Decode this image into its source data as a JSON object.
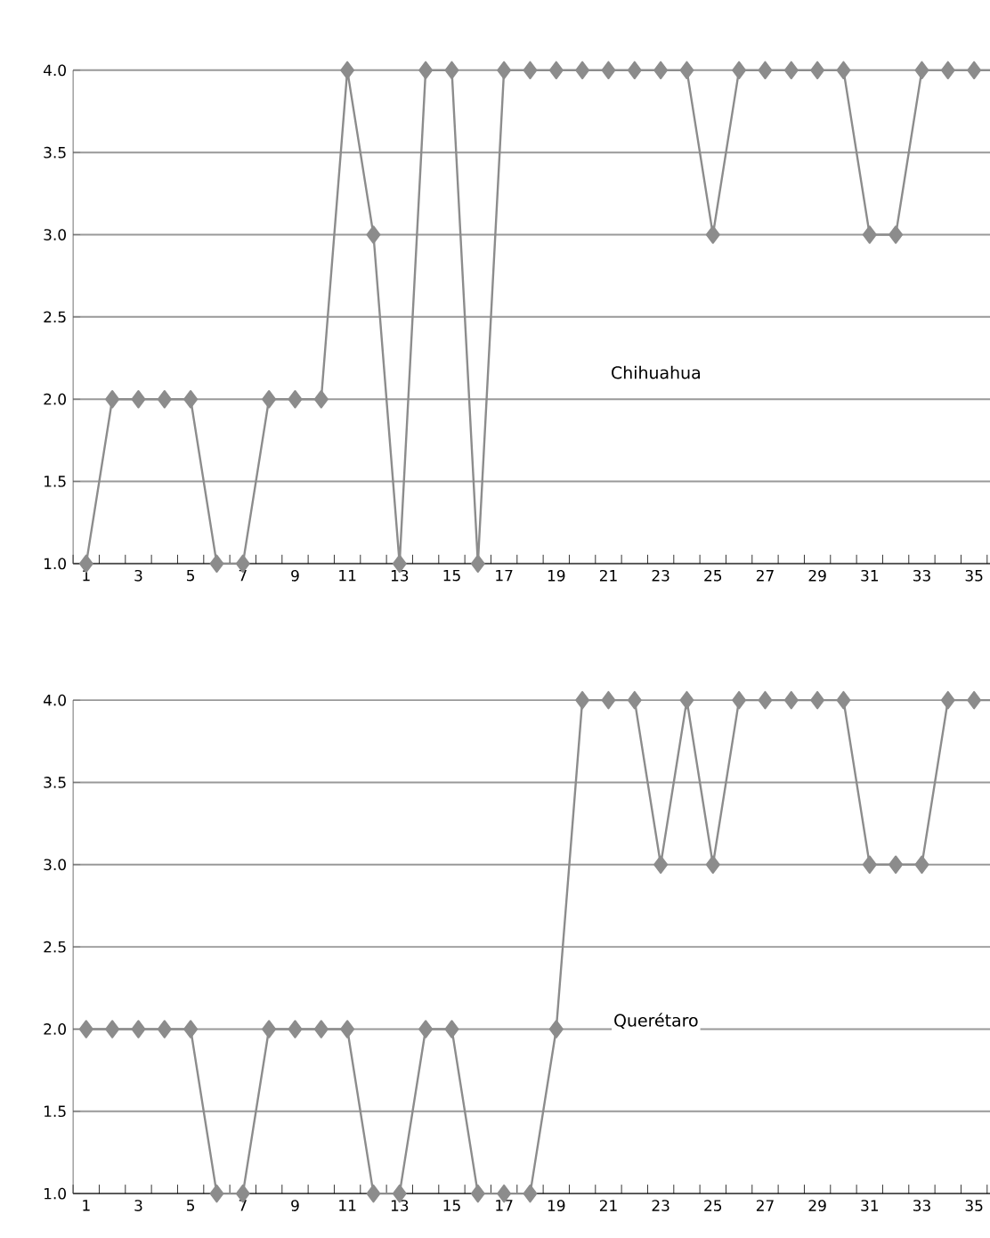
{
  "chart_data": [
    {
      "type": "line",
      "categories": [
        "1",
        null,
        "3",
        null,
        "5",
        null,
        "7",
        null,
        "9",
        null,
        "11",
        null,
        "13",
        null,
        "15",
        null,
        "17",
        null,
        "19",
        null,
        "21",
        null,
        "23",
        null,
        "25",
        null,
        "27",
        null,
        "29",
        null,
        "31",
        null,
        "33",
        null,
        "35",
        null
      ],
      "series": [
        {
          "name": "Chihuahua",
          "color": "#8c8c8c",
          "values": [
            1,
            2,
            2,
            2,
            2,
            1,
            1,
            2,
            2,
            2,
            4,
            3,
            1,
            4,
            4,
            1,
            4,
            4,
            4,
            4,
            4,
            4,
            4,
            4,
            3,
            4,
            4,
            4,
            4,
            4,
            3,
            3,
            4,
            4,
            4,
            4
          ]
        }
      ],
      "ylim": [
        1,
        4
      ],
      "yticks": [
        {
          "value": 1,
          "label": "1.0"
        },
        {
          "value": 1.5,
          "label": "1.5"
        },
        {
          "value": 2,
          "label": "2.0"
        },
        {
          "value": 2.5,
          "label": "2.5"
        },
        {
          "value": 3,
          "label": "3.0"
        },
        {
          "value": 3.5,
          "label": "3.5"
        },
        {
          "value": 4,
          "label": "4.0"
        }
      ],
      "grid": "y",
      "marker": "diamond",
      "line_style": "solid",
      "legend": false
    },
    {
      "type": "line",
      "categories": [
        "1",
        null,
        "3",
        null,
        "5",
        null,
        "7",
        null,
        "9",
        null,
        "11",
        null,
        "13",
        null,
        "15",
        null,
        "17",
        null,
        "19",
        null,
        "21",
        null,
        "23",
        null,
        "25",
        null,
        "27",
        null,
        "29",
        null,
        "31",
        null,
        "33",
        null,
        "35",
        null
      ],
      "series": [
        {
          "name": "Querétaro",
          "color": "#8c8c8c",
          "values": [
            2,
            2,
            2,
            2,
            2,
            1,
            1,
            2,
            2,
            2,
            2,
            1,
            1,
            2,
            2,
            1,
            1,
            1,
            2,
            4,
            4,
            4,
            3,
            4,
            3,
            4,
            4,
            4,
            4,
            4,
            3,
            3,
            3,
            4,
            4,
            4
          ]
        }
      ],
      "ylim": [
        1,
        4
      ],
      "yticks": [
        {
          "value": 1,
          "label": "1.0"
        },
        {
          "value": 1.5,
          "label": "1.5"
        },
        {
          "value": 2,
          "label": "2.0"
        },
        {
          "value": 2.5,
          "label": "2.5"
        },
        {
          "value": 3,
          "label": "3.0"
        },
        {
          "value": 3.5,
          "label": "3.5"
        },
        {
          "value": 4,
          "label": "4.0"
        }
      ],
      "grid": "y",
      "marker": "diamond",
      "line_style": "solid",
      "legend": false
    }
  ]
}
